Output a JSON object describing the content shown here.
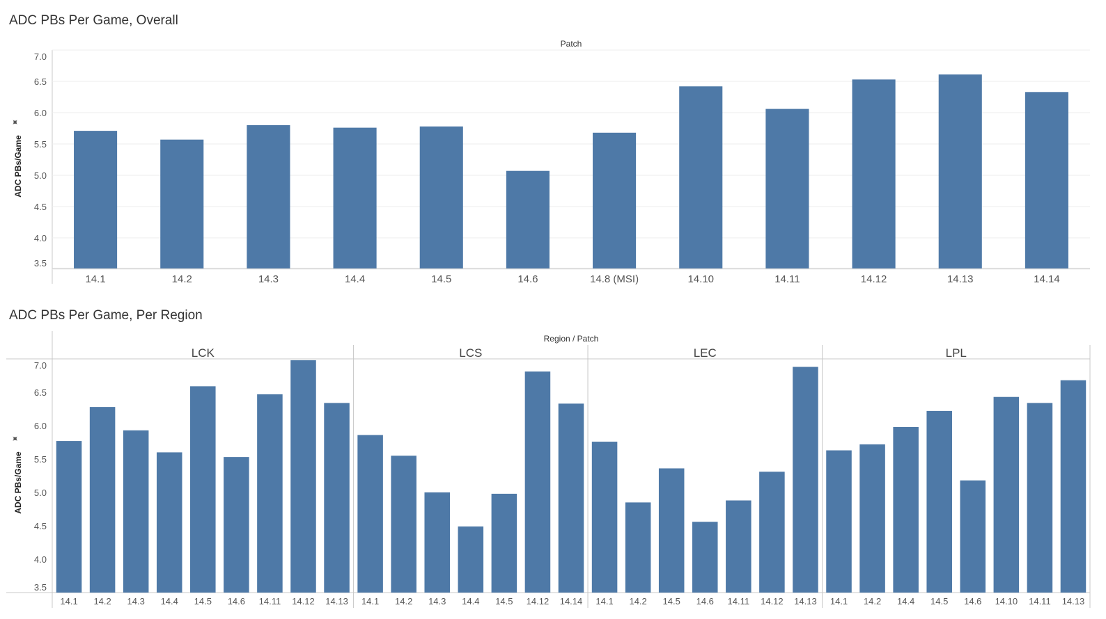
{
  "colors": {
    "bar": "#4e79a7",
    "grid": "#ececec",
    "axis": "#c8c8c8"
  },
  "chart_data": [
    {
      "type": "bar",
      "title": "ADC PBs Per Game, Overall",
      "header": "Patch",
      "ylabel": "ADC PBs/Game",
      "ylim": [
        3.5,
        7.0
      ],
      "yticks": [
        "3.5",
        "4.0",
        "4.5",
        "5.0",
        "5.5",
        "6.0",
        "6.5",
        "7.0"
      ],
      "grid": true,
      "categories": [
        "14.1",
        "14.2",
        "14.3",
        "14.4",
        "14.5",
        "14.6",
        "14.8 (MSI)",
        "14.10",
        "14.11",
        "14.12",
        "14.13",
        "14.14"
      ],
      "values": [
        5.71,
        5.57,
        5.8,
        5.76,
        5.78,
        5.07,
        5.68,
        6.42,
        6.06,
        6.53,
        6.61,
        6.33
      ]
    },
    {
      "type": "bar",
      "title": "ADC PBs Per Game, Per Region",
      "header": "Region / Patch",
      "ylabel": "ADC PBs/Game",
      "ylim": [
        3.5,
        7.0
      ],
      "yticks": [
        "3.5",
        "4.0",
        "4.5",
        "5.0",
        "5.5",
        "6.0",
        "6.5",
        "7.0"
      ],
      "grid": false,
      "panes": [
        {
          "name": "LCK",
          "categories": [
            "14.1",
            "14.2",
            "14.3",
            "14.4",
            "14.5",
            "14.6",
            "14.11",
            "14.12",
            "14.13"
          ],
          "values": [
            5.77,
            6.28,
            5.93,
            5.6,
            6.59,
            5.53,
            6.47,
            6.98,
            6.34
          ]
        },
        {
          "name": "LCS",
          "categories": [
            "14.1",
            "14.2",
            "14.3",
            "14.4",
            "14.5",
            "14.12",
            "14.14"
          ],
          "values": [
            5.86,
            5.55,
            5.0,
            4.49,
            4.98,
            6.81,
            6.33
          ]
        },
        {
          "name": "LEC",
          "categories": [
            "14.1",
            "14.2",
            "14.5",
            "14.6",
            "14.11",
            "14.12",
            "14.13"
          ],
          "values": [
            5.76,
            4.85,
            5.36,
            4.56,
            4.88,
            5.31,
            6.88
          ]
        },
        {
          "name": "LPL",
          "categories": [
            "14.1",
            "14.2",
            "14.4",
            "14.5",
            "14.6",
            "14.10",
            "14.11",
            "14.13"
          ],
          "values": [
            5.63,
            5.72,
            5.98,
            6.22,
            5.18,
            6.43,
            6.34,
            6.68
          ]
        }
      ]
    }
  ]
}
